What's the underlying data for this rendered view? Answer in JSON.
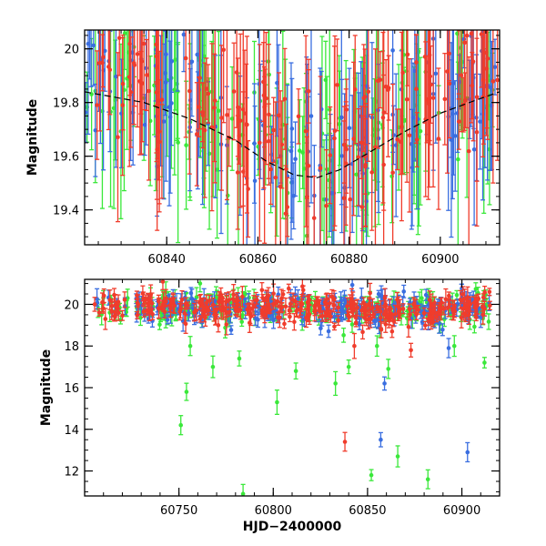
{
  "chart_data": [
    {
      "type": "scatter",
      "panel": "top",
      "xlabel": "",
      "ylabel": "Magnitude",
      "xlim": [
        60822,
        60913
      ],
      "ylim": [
        20.07,
        19.27
      ],
      "y_inverted": true,
      "xticks": [
        60840,
        60860,
        60880,
        60900
      ],
      "yticks": [
        19.4,
        19.6,
        19.8,
        20
      ],
      "ytick_labels": [
        "19.4",
        "19.6",
        "19.8",
        "20"
      ],
      "series_colors": [
        "#3a6ee0",
        "#3ae83a",
        "#f03c2c"
      ],
      "model_curve": {
        "style": "dashed",
        "color": "#000000",
        "points": [
          [
            60822,
            19.84
          ],
          [
            60835,
            19.8
          ],
          [
            60845,
            19.74
          ],
          [
            60855,
            19.66
          ],
          [
            60862,
            19.58
          ],
          [
            60868,
            19.53
          ],
          [
            60873,
            19.52
          ],
          [
            60878,
            19.55
          ],
          [
            60885,
            19.62
          ],
          [
            60892,
            19.69
          ],
          [
            60900,
            19.76
          ],
          [
            60908,
            19.81
          ],
          [
            60913,
            19.84
          ]
        ]
      },
      "note": "dense overlapping photometry with error bars spanning the plotted range"
    },
    {
      "type": "scatter",
      "panel": "bottom",
      "xlabel": "HJD−2400000",
      "ylabel": "Magnitude",
      "xlim": [
        60700,
        60920
      ],
      "ylim": [
        21.2,
        10.8
      ],
      "y_inverted": true,
      "xticks": [
        60750,
        60800,
        60850,
        60900
      ],
      "yticks": [
        12,
        14,
        16,
        18,
        20
      ],
      "series": [
        {
          "color": "#3ae83a",
          "outliers": [
            [
              60751,
              14.2
            ],
            [
              60754,
              15.8
            ],
            [
              60756,
              18.0
            ],
            [
              60768,
              17.0
            ],
            [
              60782,
              17.4
            ],
            [
              60784,
              10.9
            ],
            [
              60802,
              15.3
            ],
            [
              60812,
              16.8
            ],
            [
              60833,
              16.2
            ],
            [
              60840,
              17.0
            ],
            [
              60852,
              11.8
            ],
            [
              60855,
              18.0
            ],
            [
              60861,
              16.9
            ],
            [
              60866,
              12.7
            ],
            [
              60882,
              11.6
            ],
            [
              60896,
              18.0
            ],
            [
              60912,
              17.2
            ]
          ]
        },
        {
          "color": "#3a6ee0",
          "outliers": [
            [
              60857,
              13.5
            ],
            [
              60859,
              16.2
            ],
            [
              60893,
              17.9
            ],
            [
              60903,
              12.9
            ]
          ]
        },
        {
          "color": "#f03c2c",
          "outliers": [
            [
              60711,
              19.3
            ],
            [
              60838,
              13.4
            ],
            [
              60843,
              18.0
            ],
            [
              60863,
              18.7
            ],
            [
              60873,
              17.8
            ]
          ]
        }
      ],
      "baseline": {
        "x_range": [
          60705,
          60915
        ],
        "mean": 19.9,
        "scatter": 0.35
      }
    }
  ]
}
